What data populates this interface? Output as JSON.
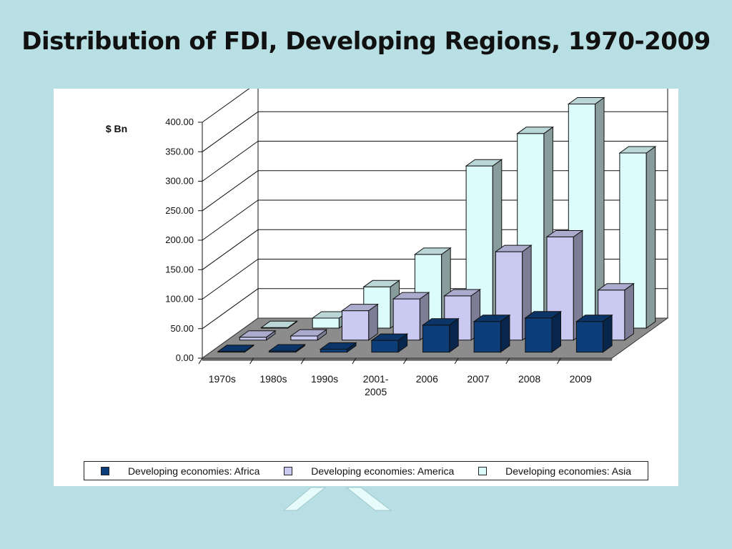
{
  "slide": {
    "title": "Distribution of FDI, Developing Regions, 1970-2009"
  },
  "colors": {
    "background": "#b8dfe3",
    "africa": "#0d3e7a",
    "america": "#c9c9f2",
    "asia": "#dcfcfc",
    "floor": "#8c8c8c"
  },
  "chart_data": {
    "type": "bar",
    "subtype": "3d-clustered-column",
    "title": "",
    "ylabel": "$ Bn",
    "xlabel": "",
    "ylim": [
      0,
      400
    ],
    "yticks": [
      "0.00",
      "50.00",
      "100.00",
      "150.00",
      "200.00",
      "250.00",
      "300.00",
      "350.00",
      "400.00"
    ],
    "grid": true,
    "legend_position": "bottom",
    "categories": [
      "1970s",
      "1980s",
      "1990s",
      "2001-\n2005",
      "2006",
      "2007",
      "2008",
      "2009"
    ],
    "series": [
      {
        "name": "Developing economies: Africa",
        "values": [
          1,
          2,
          5,
          20,
          46,
          52,
          58,
          52
        ]
      },
      {
        "name": "Developing economies: America",
        "values": [
          5,
          7,
          50,
          70,
          75,
          150,
          175,
          85
        ]
      },
      {
        "name": "Developing economies: Asia",
        "values": [
          1,
          17,
          70,
          125,
          275,
          330,
          380,
          297
        ]
      }
    ]
  }
}
